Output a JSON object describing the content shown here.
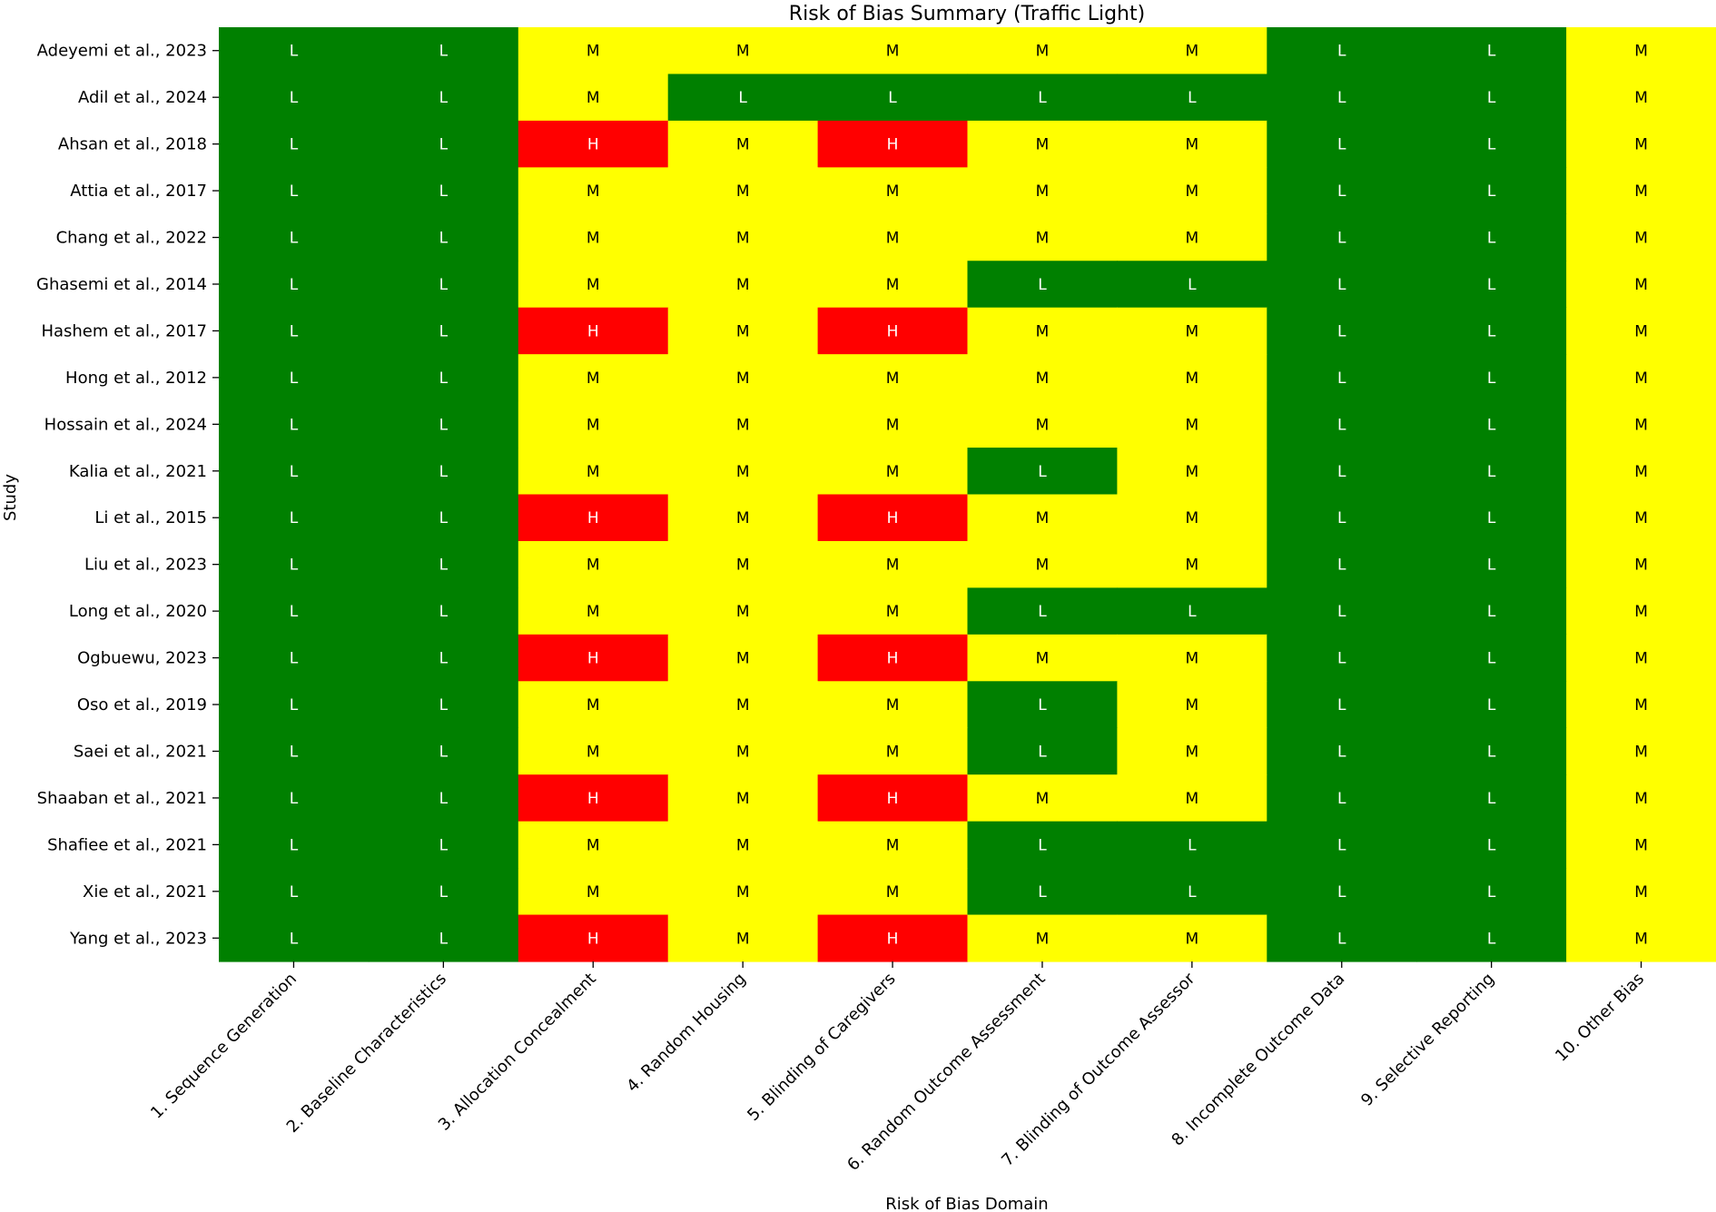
{
  "chart_data": {
    "type": "heatmap",
    "title": "Risk of Bias Summary (Traffic Light)",
    "xlabel": "Risk of Bias Domain",
    "ylabel": "Study",
    "x_categories": [
      "1. Sequence Generation",
      "2. Baseline Characteristics",
      "3. Allocation Concealment",
      "4. Random Housing",
      "5. Blinding of Caregivers",
      "6. Random Outcome Assessment",
      "7. Blinding of Outcome Assessor",
      "8. Incomplete Outcome Data",
      "9. Selective Reporting",
      "10. Other Bias"
    ],
    "y_categories": [
      "Adeyemi et al., 2023",
      "Adil et al., 2024",
      "Ahsan et al., 2018",
      "Attia et al., 2017",
      "Chang et al., 2022",
      "Ghasemi et al., 2014",
      "Hashem et al., 2017",
      "Hong et al., 2012",
      "Hossain et al., 2024",
      "Kalia et al., 2021",
      "Li et al., 2015",
      "Liu et al., 2023",
      "Long et al., 2020",
      "Ogbuewu, 2023",
      "Oso et al., 2019",
      "Saei et al., 2021",
      "Shaaban et al., 2021",
      "Shafiee et al., 2021",
      "Xie et al., 2021",
      "Yang et al., 2023"
    ],
    "values": [
      [
        "L",
        "L",
        "M",
        "M",
        "M",
        "M",
        "M",
        "L",
        "L",
        "M"
      ],
      [
        "L",
        "L",
        "M",
        "L",
        "L",
        "L",
        "L",
        "L",
        "L",
        "M"
      ],
      [
        "L",
        "L",
        "H",
        "M",
        "H",
        "M",
        "M",
        "L",
        "L",
        "M"
      ],
      [
        "L",
        "L",
        "M",
        "M",
        "M",
        "M",
        "M",
        "L",
        "L",
        "M"
      ],
      [
        "L",
        "L",
        "M",
        "M",
        "M",
        "M",
        "M",
        "L",
        "L",
        "M"
      ],
      [
        "L",
        "L",
        "M",
        "M",
        "M",
        "L",
        "L",
        "L",
        "L",
        "M"
      ],
      [
        "L",
        "L",
        "H",
        "M",
        "H",
        "M",
        "M",
        "L",
        "L",
        "M"
      ],
      [
        "L",
        "L",
        "M",
        "M",
        "M",
        "M",
        "M",
        "L",
        "L",
        "M"
      ],
      [
        "L",
        "L",
        "M",
        "M",
        "M",
        "M",
        "M",
        "L",
        "L",
        "M"
      ],
      [
        "L",
        "L",
        "M",
        "M",
        "M",
        "L",
        "M",
        "L",
        "L",
        "M"
      ],
      [
        "L",
        "L",
        "H",
        "M",
        "H",
        "M",
        "M",
        "L",
        "L",
        "M"
      ],
      [
        "L",
        "L",
        "M",
        "M",
        "M",
        "M",
        "M",
        "L",
        "L",
        "M"
      ],
      [
        "L",
        "L",
        "M",
        "M",
        "M",
        "L",
        "L",
        "L",
        "L",
        "M"
      ],
      [
        "L",
        "L",
        "H",
        "M",
        "H",
        "M",
        "M",
        "L",
        "L",
        "M"
      ],
      [
        "L",
        "L",
        "M",
        "M",
        "M",
        "L",
        "M",
        "L",
        "L",
        "M"
      ],
      [
        "L",
        "L",
        "M",
        "M",
        "M",
        "L",
        "M",
        "L",
        "L",
        "M"
      ],
      [
        "L",
        "L",
        "H",
        "M",
        "H",
        "M",
        "M",
        "L",
        "L",
        "M"
      ],
      [
        "L",
        "L",
        "M",
        "M",
        "M",
        "L",
        "L",
        "L",
        "L",
        "M"
      ],
      [
        "L",
        "L",
        "M",
        "M",
        "M",
        "L",
        "L",
        "L",
        "L",
        "M"
      ],
      [
        "L",
        "L",
        "H",
        "M",
        "H",
        "M",
        "M",
        "L",
        "L",
        "M"
      ]
    ],
    "colors": {
      "L": "#008000",
      "M": "#ffff00",
      "H": "#ff0000"
    },
    "text_colors": {
      "L": "#ffffff",
      "M": "#000000",
      "H": "#ffffff"
    },
    "grid": false,
    "legend": "none"
  }
}
